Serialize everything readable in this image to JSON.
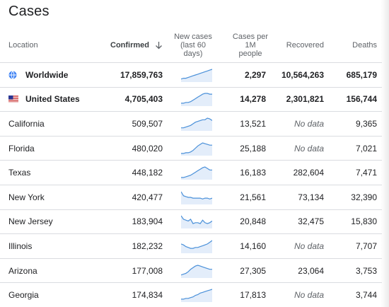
{
  "page": {
    "title": "Cases"
  },
  "columns": {
    "location": "Location",
    "confirmed": "Confirmed",
    "new_cases_line1": "New cases",
    "new_cases_line2": "(last 60 days)",
    "cases_per_1m_line1": "Cases per",
    "cases_per_1m_line2": "1M",
    "cases_per_1m_line3": "people",
    "recovered": "Recovered",
    "deaths": "Deaths"
  },
  "icons": {
    "sort": "arrow-down-icon",
    "worldwide": "globe-icon",
    "united_states": "us-flag-icon"
  },
  "colors": {
    "spark_line": "#4a90d9",
    "spark_fill": "#e3edfa",
    "nodata_text": "#5f6368"
  },
  "rows": [
    {
      "location": "Worldwide",
      "confirmed": "17,859,763",
      "cases_per_1m": "2,297",
      "recovered": "10,564,263",
      "deaths": "685,179",
      "trend": [
        2,
        3,
        3,
        4,
        5,
        6,
        7,
        8,
        9,
        10,
        11,
        12,
        13,
        14
      ]
    },
    {
      "location": "United States",
      "confirmed": "4,705,403",
      "cases_per_1m": "14,278",
      "recovered": "2,301,821",
      "deaths": "156,744",
      "trend": [
        2,
        2,
        3,
        3,
        4,
        6,
        8,
        10,
        12,
        14,
        15,
        15,
        14,
        14
      ]
    },
    {
      "location": "California",
      "confirmed": "509,507",
      "cases_per_1m": "13,521",
      "recovered": "No data",
      "deaths": "9,365",
      "trend": [
        2,
        2,
        3,
        4,
        5,
        7,
        9,
        10,
        11,
        12,
        12,
        14,
        13,
        11
      ]
    },
    {
      "location": "Florida",
      "confirmed": "480,020",
      "cases_per_1m": "25,188",
      "recovered": "No data",
      "deaths": "7,021",
      "trend": [
        1,
        1,
        2,
        2,
        3,
        5,
        8,
        11,
        13,
        15,
        14,
        13,
        12,
        12
      ]
    },
    {
      "location": "Texas",
      "confirmed": "448,182",
      "cases_per_1m": "16,183",
      "recovered": "282,604",
      "deaths": "7,471",
      "trend": [
        1,
        1,
        2,
        3,
        4,
        6,
        8,
        10,
        12,
        14,
        15,
        13,
        11,
        11
      ]
    },
    {
      "location": "New York",
      "confirmed": "420,477",
      "cases_per_1m": "21,561",
      "recovered": "73,134",
      "deaths": "32,390",
      "trend": [
        14,
        9,
        8,
        7,
        7,
        6,
        6,
        6,
        6,
        5,
        6,
        6,
        5,
        6
      ]
    },
    {
      "location": "New Jersey",
      "confirmed": "183,904",
      "cases_per_1m": "20,848",
      "recovered": "32,475",
      "deaths": "15,830",
      "trend": [
        13,
        9,
        8,
        7,
        9,
        4,
        5,
        5,
        4,
        8,
        5,
        4,
        5,
        7
      ]
    },
    {
      "location": "Illinois",
      "confirmed": "182,232",
      "cases_per_1m": "14,160",
      "recovered": "No data",
      "deaths": "7,707",
      "trend": [
        9,
        8,
        6,
        5,
        4,
        4,
        5,
        5,
        6,
        7,
        8,
        9,
        11,
        13
      ]
    },
    {
      "location": "Arizona",
      "confirmed": "177,008",
      "cases_per_1m": "27,305",
      "recovered": "23,064",
      "deaths": "3,753",
      "trend": [
        2,
        3,
        4,
        6,
        9,
        11,
        13,
        14,
        13,
        12,
        11,
        10,
        9,
        9
      ]
    },
    {
      "location": "Georgia",
      "confirmed": "174,834",
      "cases_per_1m": "17,813",
      "recovered": "No data",
      "deaths": "3,744",
      "trend": [
        2,
        2,
        3,
        3,
        4,
        5,
        7,
        8,
        10,
        11,
        12,
        13,
        14,
        15
      ]
    }
  ]
}
